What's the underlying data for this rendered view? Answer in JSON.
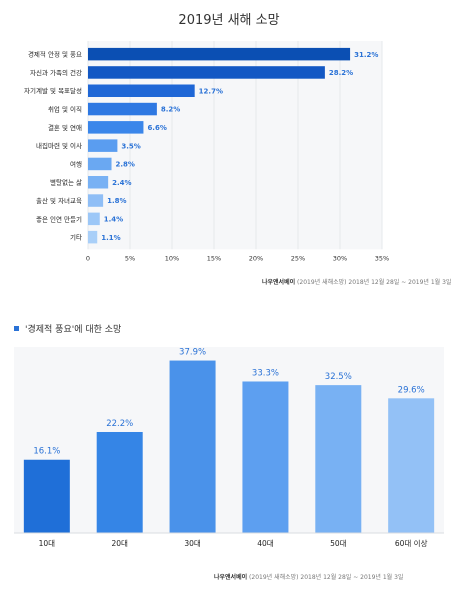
{
  "chart_data": [
    {
      "type": "bar",
      "orientation": "horizontal",
      "title": "2019년 새해 소망",
      "categories": [
        "경제적 안정 및 풍요",
        "자신과 가족의 건강",
        "자기계발 및 목표달성",
        "취업 및 이직",
        "결혼 및 연애",
        "내집마련 및 이사",
        "여행",
        "별탈없는 삶",
        "출산 및 자녀교육",
        "좋은 인연 만들기",
        "기타"
      ],
      "values": [
        31.2,
        28.2,
        12.7,
        8.2,
        6.6,
        3.5,
        2.8,
        2.4,
        1.8,
        1.4,
        1.1
      ],
      "value_labels": [
        "31.2%",
        "28.2%",
        "12.7%",
        "8.2%",
        "6.6%",
        "3.5%",
        "2.8%",
        "2.4%",
        "1.8%",
        "1.4%",
        "1.1%"
      ],
      "xlim": [
        0,
        35
      ],
      "ticks": [
        "0",
        "5%",
        "10%",
        "15%",
        "20%",
        "25%",
        "30%",
        "35%"
      ],
      "colors": [
        "#0b4fb3",
        "#1358c4",
        "#1f67d6",
        "#2e78e2",
        "#3a86ea",
        "#5a9df0",
        "#6aa8f2",
        "#78b1f4",
        "#8fbef6",
        "#9cc7f7",
        "#a9cff8"
      ],
      "source": {
        "brand": "나우앤서베이",
        "rest": " (2019년 새해소망) 2018년 12월 28일 ~ 2019년 1월 3일"
      }
    },
    {
      "type": "bar",
      "orientation": "vertical",
      "title": "'경제적 풍요'에 대한 소망",
      "categories": [
        "10대",
        "20대",
        "30대",
        "40대",
        "50대",
        "60대 이상"
      ],
      "values": [
        16.1,
        22.2,
        37.9,
        33.3,
        32.5,
        29.6
      ],
      "value_labels": [
        "16.1%",
        "22.2%",
        "37.9%",
        "33.3%",
        "32.5%",
        "29.6%"
      ],
      "ylim": [
        0,
        40
      ],
      "colors": [
        "#1f6fd8",
        "#3585e6",
        "#4a92ea",
        "#5d9ff0",
        "#78b1f3",
        "#93c1f6"
      ],
      "source": {
        "brand": "나우앤서베이",
        "rest": " (2019년 새해소망) 2018년 12월 28일 ~ 2019년 1월 3일"
      }
    }
  ]
}
